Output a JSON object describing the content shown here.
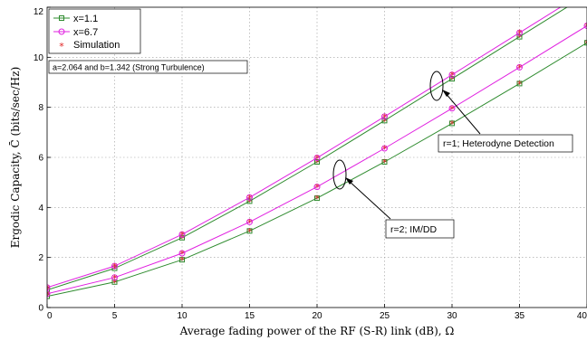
{
  "chart_data": {
    "type": "line",
    "xlabel": "Average fading power of the RF (S-R) link (dB), Ω",
    "ylabel": "Ergodic Capacity, C̄ (bits/sec/Hz)",
    "xlim": [
      0,
      40
    ],
    "ylim": [
      0,
      12
    ],
    "xticks": [
      0,
      5,
      10,
      15,
      20,
      25,
      30,
      35,
      40
    ],
    "yticks": [
      0,
      2,
      4,
      6,
      8,
      10,
      12
    ],
    "grid": "dotted",
    "legend_position": "top-left",
    "legend": [
      {
        "label": "x=1.1",
        "marker": "square",
        "color": "#2e8b2e"
      },
      {
        "label": "x=6.7",
        "marker": "circle",
        "color": "#e020e0"
      },
      {
        "label": "Simulation",
        "marker": "asterisk",
        "color": "#e02020"
      }
    ],
    "note": "a=2.064 and b=1.342 (Strong Turbulence)",
    "annotations": [
      {
        "text": "r=1; Heterodyne Detection"
      },
      {
        "text": "r=2; IM/DD"
      }
    ],
    "x": [
      0,
      5,
      10,
      15,
      20,
      25,
      30,
      35,
      40
    ],
    "series": [
      {
        "group": "r=1",
        "legend_ref": "x=1.1",
        "color": "#2e8b2e",
        "marker": "square",
        "values": [
          0.7,
          1.57,
          2.79,
          4.25,
          5.82,
          7.47,
          9.14,
          10.82,
          12.5
        ]
      },
      {
        "group": "r=1",
        "legend_ref": "x=6.7",
        "color": "#e020e0",
        "marker": "circle",
        "values": [
          0.8,
          1.66,
          2.92,
          4.4,
          5.98,
          7.63,
          9.3,
          10.98,
          12.66
        ]
      },
      {
        "group": "r=2",
        "legend_ref": "x=1.1",
        "color": "#2e8b2e",
        "marker": "square",
        "values": [
          0.45,
          1.02,
          1.91,
          3.06,
          4.37,
          5.82,
          7.36,
          8.95,
          10.58
        ]
      },
      {
        "group": "r=2",
        "legend_ref": "x=6.7",
        "color": "#e020e0",
        "marker": "circle",
        "values": [
          0.55,
          1.2,
          2.17,
          3.42,
          4.82,
          6.36,
          7.96,
          9.6,
          11.26
        ]
      }
    ],
    "simulation_color": "#e02020"
  }
}
